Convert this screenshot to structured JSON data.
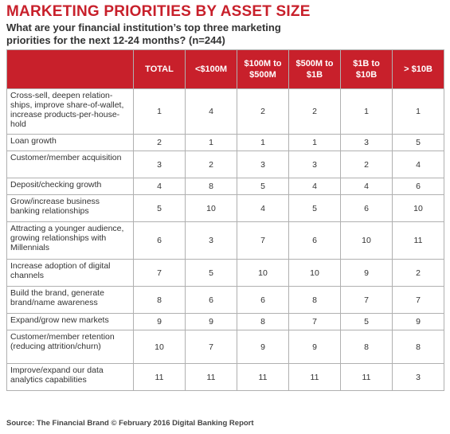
{
  "header": {
    "title": "MARKETING PRIORITIES BY ASSET SIZE",
    "subtitle": "What are your financial institution’s top three marketing priorities for the next 12-24 months? (n=244)"
  },
  "footer": {
    "source": "Source: The Financial Brand © February 2016 Digital Banking Report"
  },
  "colors": {
    "header_bg": "#c8202b",
    "title": "#c8202b"
  },
  "chart_data": {
    "type": "table",
    "columns": [
      "TOTAL",
      "<$100M",
      "$100M to $500M",
      "$500M to $1B",
      "$1B to $10B",
      "> $10B"
    ],
    "rows": [
      {
        "label": "Cross-sell, deepen relation-ships, improve share-of-wallet, increase products-per-house-hold",
        "values": [
          1,
          4,
          2,
          2,
          1,
          1
        ]
      },
      {
        "label": "Loan growth",
        "values": [
          2,
          1,
          1,
          1,
          3,
          5
        ]
      },
      {
        "label": "Customer/member acquisition",
        "values": [
          3,
          2,
          3,
          3,
          2,
          4
        ]
      },
      {
        "label": "Deposit/checking growth",
        "values": [
          4,
          8,
          5,
          4,
          4,
          6
        ]
      },
      {
        "label": "Grow/increase business banking relationships",
        "values": [
          5,
          10,
          4,
          5,
          6,
          10
        ]
      },
      {
        "label": "Attracting a younger audience, growing relationships with Millennials",
        "values": [
          6,
          3,
          7,
          6,
          10,
          11
        ]
      },
      {
        "label": "Increase adoption of digital channels",
        "values": [
          7,
          5,
          10,
          10,
          9,
          2
        ]
      },
      {
        "label": "Build the brand, generate brand/name awareness",
        "values": [
          8,
          6,
          6,
          8,
          7,
          7
        ]
      },
      {
        "label": "Expand/grow new markets",
        "values": [
          9,
          9,
          8,
          7,
          5,
          9
        ]
      },
      {
        "label": "Customer/member retention (reducing attrition/churn)",
        "values": [
          10,
          7,
          9,
          9,
          8,
          8
        ]
      },
      {
        "label": "Improve/expand our data analytics capabilities",
        "values": [
          11,
          11,
          11,
          11,
          11,
          3
        ]
      }
    ]
  }
}
